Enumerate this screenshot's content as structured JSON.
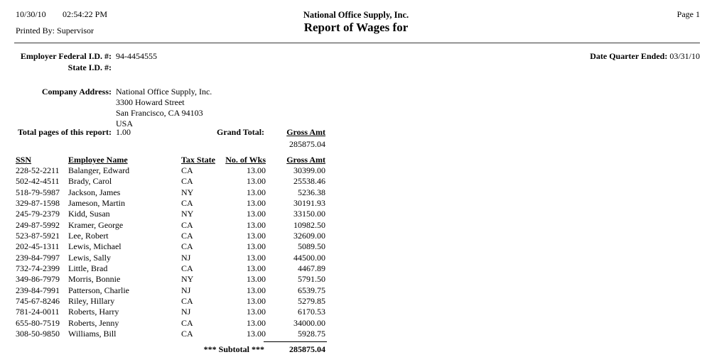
{
  "header": {
    "date": "10/30/10",
    "time": "02:54:22 PM",
    "printed_by_label": "Printed By:",
    "printed_by": "Supervisor",
    "company": "National Office Supply, Inc.",
    "title": "Report of Wages for",
    "page_label": "Page 1"
  },
  "info": {
    "federal_id_label": "Employer Federal I.D. #:",
    "federal_id": "94-4454555",
    "state_id_label": "State I.D. #:",
    "state_id": "",
    "quarter_label": "Date Quarter Ended:",
    "quarter_value": "03/31/10",
    "company_address_label": "Company Address:",
    "address_lines": [
      "National Office Supply, Inc.",
      "3300 Howard Street",
      "San Francisco, CA 94103",
      "USA"
    ],
    "total_pages_label": "Total pages of this report:",
    "total_pages": "1.00",
    "grand_total_label": "Grand Total:",
    "grand_total_column_label": "Gross Amt",
    "grand_total_value": "285875.04"
  },
  "table": {
    "headers": [
      "SSN",
      "Employee Name",
      "Tax State",
      "No. of Wks",
      "Gross Amt"
    ],
    "rows": [
      [
        "228-52-2211",
        "Balanger, Edward",
        "CA",
        "13.00",
        "30399.00"
      ],
      [
        "502-42-4511",
        "Brady, Carol",
        "CA",
        "13.00",
        "25538.46"
      ],
      [
        "518-79-5987",
        "Jackson, James",
        "NY",
        "13.00",
        "5236.38"
      ],
      [
        "329-87-1598",
        "Jameson, Martin",
        "CA",
        "13.00",
        "30191.93"
      ],
      [
        "245-79-2379",
        "Kidd, Susan",
        "NY",
        "13.00",
        "33150.00"
      ],
      [
        "249-87-5992",
        "Kramer, George",
        "CA",
        "13.00",
        "10982.50"
      ],
      [
        "523-87-5921",
        "Lee, Robert",
        "CA",
        "13.00",
        "32609.00"
      ],
      [
        "202-45-1311",
        "Lewis, Michael",
        "CA",
        "13.00",
        "5089.50"
      ],
      [
        "239-84-7997",
        "Lewis, Sally",
        "NJ",
        "13.00",
        "44500.00"
      ],
      [
        "732-74-2399",
        "Little, Brad",
        "CA",
        "13.00",
        "4467.89"
      ],
      [
        "349-86-7979",
        "Morris, Bonnie",
        "NY",
        "13.00",
        "5791.50"
      ],
      [
        "239-84-7991",
        "Patterson, Charlie",
        "NJ",
        "13.00",
        "6539.75"
      ],
      [
        "745-67-8246",
        "Riley, Hillary",
        "CA",
        "13.00",
        "5279.85"
      ],
      [
        "781-24-0011",
        "Roberts, Harry",
        "NJ",
        "13.00",
        "6170.53"
      ],
      [
        "655-80-7519",
        "Roberts, Jenny",
        "CA",
        "13.00",
        "34000.00"
      ],
      [
        "308-50-9850",
        "Williams, Bill",
        "CA",
        "13.00",
        "5928.75"
      ]
    ],
    "subtotal_label": "*** Subtotal ***",
    "subtotal_value": "285875.04"
  }
}
